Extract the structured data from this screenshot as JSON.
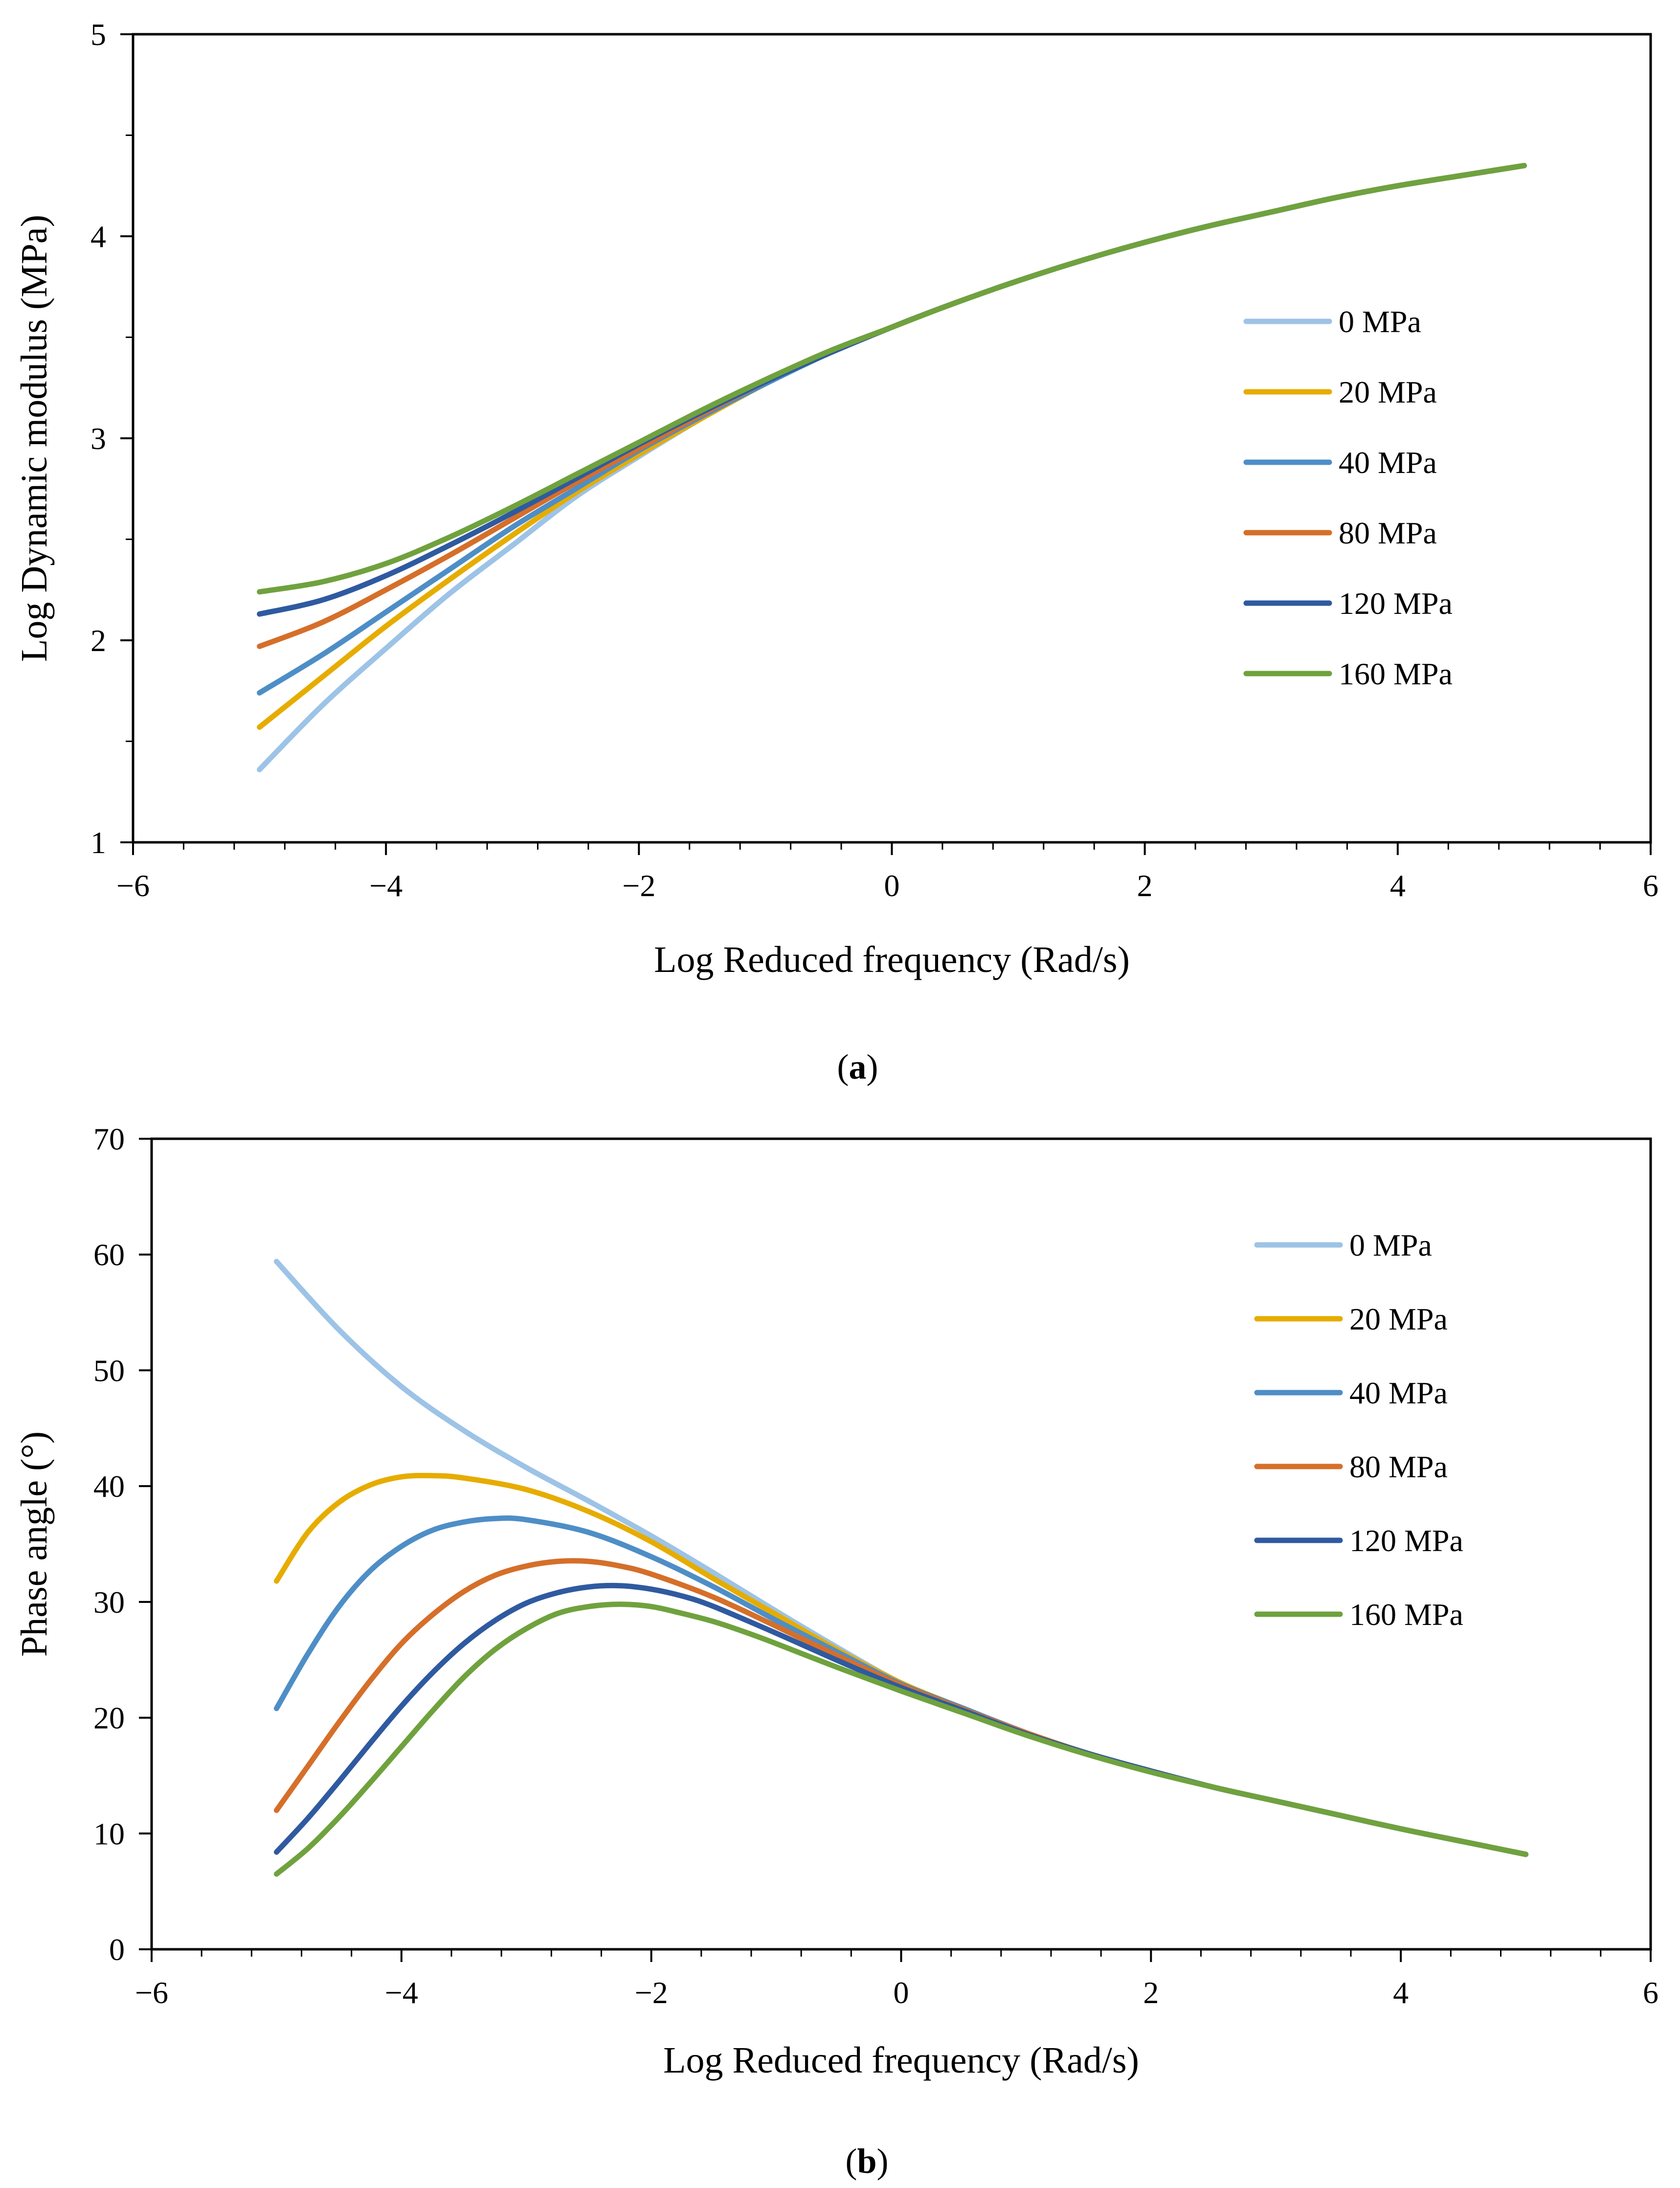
{
  "chart_data": [
    {
      "id": "a",
      "type": "line",
      "caption": {
        "open": "(",
        "letter": "a",
        "close": ")"
      },
      "xlabel": "Log Reduced frequency (Rad/s)",
      "ylabel": "Log Dynamic modulus (MPa)",
      "xlim": [
        -6,
        6
      ],
      "ylim": [
        1,
        5
      ],
      "xticks": [
        -6,
        -4,
        -2,
        0,
        2,
        4,
        6
      ],
      "xtick_labels": [
        "−6",
        "−4",
        "−2",
        "0",
        "2",
        "4",
        "6"
      ],
      "yticks": [
        1,
        2,
        3,
        4,
        5
      ],
      "ytick_labels": [
        "1",
        "2",
        "3",
        "4",
        "5"
      ],
      "grid": false,
      "legend_position": "right",
      "series": [
        {
          "name": "0 MPa",
          "color": "#9DC3E6",
          "x": [
            -5,
            -4.5,
            -4,
            -3.5,
            -3,
            -2.5,
            -2,
            -1.5,
            -1,
            -0.5,
            0,
            0.5,
            1,
            1.5,
            2,
            2.5,
            3,
            3.5,
            4,
            4.5,
            5
          ],
          "y": [
            1.36,
            1.68,
            1.96,
            2.23,
            2.47,
            2.71,
            2.91,
            3.1,
            3.27,
            3.42,
            3.55,
            3.67,
            3.78,
            3.88,
            3.97,
            4.05,
            4.12,
            4.19,
            4.25,
            4.3,
            4.35
          ]
        },
        {
          "name": "20 MPa",
          "color": "#E6AC00",
          "x": [
            -5,
            -4.5,
            -4,
            -3.5,
            -3,
            -2.5,
            -2,
            -1.5,
            -1,
            -0.5,
            0,
            0.5,
            1,
            1.5,
            2,
            2.5,
            3,
            3.5,
            4,
            4.5,
            5
          ],
          "y": [
            1.57,
            1.82,
            2.07,
            2.3,
            2.52,
            2.73,
            2.92,
            3.1,
            3.27,
            3.42,
            3.55,
            3.67,
            3.78,
            3.88,
            3.97,
            4.05,
            4.12,
            4.19,
            4.25,
            4.3,
            4.35
          ]
        },
        {
          "name": "40 MPa",
          "color": "#4E8EC6",
          "x": [
            -5,
            -4.5,
            -4,
            -3.5,
            -3,
            -2.5,
            -2,
            -1.5,
            -1,
            -0.5,
            0,
            0.5,
            1,
            1.5,
            2,
            2.5,
            3,
            3.5,
            4,
            4.5,
            5
          ],
          "y": [
            1.74,
            1.93,
            2.14,
            2.35,
            2.56,
            2.75,
            2.94,
            3.11,
            3.27,
            3.42,
            3.55,
            3.67,
            3.78,
            3.88,
            3.97,
            4.05,
            4.12,
            4.19,
            4.25,
            4.3,
            4.35
          ]
        },
        {
          "name": "80 MPa",
          "color": "#D56F2A",
          "x": [
            -5,
            -4.5,
            -4,
            -3.5,
            -3,
            -2.5,
            -2,
            -1.5,
            -1,
            -0.5,
            0,
            0.5,
            1,
            1.5,
            2,
            2.5,
            3,
            3.5,
            4,
            4.5,
            5
          ],
          "y": [
            1.97,
            2.09,
            2.25,
            2.42,
            2.6,
            2.78,
            2.95,
            3.12,
            3.28,
            3.42,
            3.55,
            3.67,
            3.78,
            3.88,
            3.97,
            4.05,
            4.12,
            4.19,
            4.25,
            4.3,
            4.35
          ]
        },
        {
          "name": "120 MPa",
          "color": "#2F5AA0",
          "x": [
            -5,
            -4.5,
            -4,
            -3.5,
            -3,
            -2.5,
            -2,
            -1.5,
            -1,
            -0.5,
            0,
            0.5,
            1,
            1.5,
            2,
            2.5,
            3,
            3.5,
            4,
            4.5,
            5
          ],
          "y": [
            2.13,
            2.2,
            2.32,
            2.47,
            2.63,
            2.8,
            2.97,
            3.13,
            3.28,
            3.42,
            3.55,
            3.67,
            3.78,
            3.88,
            3.97,
            4.05,
            4.12,
            4.19,
            4.25,
            4.3,
            4.35
          ]
        },
        {
          "name": "160 MPa",
          "color": "#6FA23E",
          "x": [
            -5,
            -4.5,
            -4,
            -3.5,
            -3,
            -2.5,
            -2,
            -1.5,
            -1,
            -0.5,
            0,
            0.5,
            1,
            1.5,
            2,
            2.5,
            3,
            3.5,
            4,
            4.5,
            5
          ],
          "y": [
            2.24,
            2.29,
            2.38,
            2.51,
            2.66,
            2.82,
            2.98,
            3.14,
            3.29,
            3.43,
            3.55,
            3.67,
            3.78,
            3.88,
            3.97,
            4.05,
            4.12,
            4.19,
            4.25,
            4.3,
            4.35
          ]
        }
      ]
    },
    {
      "id": "b",
      "type": "line",
      "caption": {
        "open": "(",
        "letter": "b",
        "close": ")"
      },
      "xlabel": "Log Reduced frequency (Rad/s)",
      "ylabel": "Phase angle (°)",
      "xlim": [
        -6,
        6
      ],
      "ylim": [
        0,
        70
      ],
      "xticks": [
        -6,
        -4,
        -2,
        0,
        2,
        4,
        6
      ],
      "xtick_labels": [
        "−6",
        "−4",
        "−2",
        "0",
        "2",
        "4",
        "6"
      ],
      "yticks": [
        0,
        10,
        20,
        30,
        40,
        50,
        60,
        70
      ],
      "ytick_labels": [
        "0",
        "10",
        "20",
        "30",
        "40",
        "50",
        "60",
        "70"
      ],
      "grid": false,
      "legend_position": "top-right",
      "series": [
        {
          "name": "0 MPa",
          "color": "#9DC3E6",
          "x": [
            -5,
            -4.5,
            -4,
            -3.5,
            -3,
            -2.5,
            -2,
            -1.5,
            -1,
            -0.5,
            0,
            0.5,
            1,
            1.5,
            2,
            2.5,
            3,
            3.5,
            4,
            4.5,
            5
          ],
          "y": [
            59.4,
            53.5,
            48.6,
            44.8,
            41.6,
            38.7,
            35.7,
            32.5,
            29.2,
            26.0,
            23.0,
            20.8,
            18.7,
            16.9,
            15.4,
            14.0,
            12.8,
            11.6,
            10.4,
            9.3,
            8.2
          ]
        },
        {
          "name": "20 MPa",
          "color": "#E6AC00",
          "x": [
            -5,
            -4.75,
            -4.5,
            -4.25,
            -4,
            -3.75,
            -3.5,
            -3,
            -2.5,
            -2,
            -1.5,
            -1,
            -0.5,
            0,
            0.5,
            1,
            1.5,
            2,
            2.5,
            3,
            3.5,
            4,
            4.5,
            5
          ],
          "y": [
            31.8,
            36.0,
            38.6,
            40.1,
            40.8,
            40.9,
            40.7,
            39.7,
            37.8,
            35.2,
            32.0,
            28.9,
            25.8,
            23.0,
            20.8,
            18.7,
            16.9,
            15.4,
            14.0,
            12.8,
            11.6,
            10.4,
            9.3,
            8.2
          ]
        },
        {
          "name": "40 MPa",
          "color": "#4E8EC6",
          "x": [
            -5,
            -4.75,
            -4.5,
            -4.25,
            -4,
            -3.75,
            -3.5,
            -3.25,
            -3,
            -2.5,
            -2,
            -1.5,
            -1,
            -0.5,
            0,
            0.5,
            1,
            1.5,
            2,
            2.5,
            3,
            3.5,
            4,
            4.5,
            5
          ],
          "y": [
            20.8,
            25.5,
            29.6,
            32.7,
            34.8,
            36.2,
            36.9,
            37.2,
            37.1,
            36.0,
            33.9,
            31.3,
            28.4,
            25.6,
            22.9,
            20.8,
            18.7,
            16.9,
            15.4,
            14.0,
            12.8,
            11.6,
            10.4,
            9.3,
            8.2
          ]
        },
        {
          "name": "80 MPa",
          "color": "#D56F2A",
          "x": [
            -5,
            -4.75,
            -4.5,
            -4.25,
            -4,
            -3.75,
            -3.5,
            -3.25,
            -3,
            -2.75,
            -2.5,
            -2.25,
            -2,
            -1.5,
            -1,
            -0.5,
            0,
            0.5,
            1,
            1.5,
            2,
            2.5,
            3,
            3.5,
            4,
            4.5,
            5
          ],
          "y": [
            12.0,
            15.8,
            19.6,
            23.2,
            26.4,
            28.9,
            30.9,
            32.3,
            33.1,
            33.5,
            33.5,
            33.1,
            32.4,
            30.4,
            27.9,
            25.3,
            22.8,
            20.7,
            18.7,
            16.9,
            15.4,
            14.0,
            12.8,
            11.6,
            10.4,
            9.3,
            8.2
          ]
        },
        {
          "name": "120 MPa",
          "color": "#2F5AA0",
          "x": [
            -5,
            -4.75,
            -4.5,
            -4.25,
            -4,
            -3.75,
            -3.5,
            -3.25,
            -3,
            -2.75,
            -2.5,
            -2.25,
            -2,
            -1.75,
            -1.5,
            -1,
            -0.5,
            0,
            0.5,
            1,
            1.5,
            2,
            2.5,
            3,
            3.5,
            4,
            4.5,
            5
          ],
          "y": [
            8.4,
            11.3,
            14.5,
            17.8,
            21.0,
            23.9,
            26.4,
            28.4,
            29.9,
            30.8,
            31.3,
            31.4,
            31.1,
            30.5,
            29.6,
            27.3,
            24.9,
            22.6,
            20.6,
            18.6,
            16.9,
            15.4,
            14.0,
            12.8,
            11.6,
            10.4,
            9.3,
            8.2
          ]
        },
        {
          "name": "160 MPa",
          "color": "#6FA23E",
          "x": [
            -5,
            -4.75,
            -4.5,
            -4.25,
            -4,
            -3.75,
            -3.5,
            -3.25,
            -3,
            -2.75,
            -2.5,
            -2.25,
            -2,
            -1.75,
            -1.5,
            -1.25,
            -1,
            -0.5,
            0,
            0.5,
            1,
            1.5,
            2,
            2.5,
            3,
            3.5,
            4,
            4.5,
            5
          ],
          "y": [
            6.5,
            8.7,
            11.4,
            14.4,
            17.5,
            20.6,
            23.5,
            25.9,
            27.7,
            29.0,
            29.6,
            29.8,
            29.6,
            29.0,
            28.3,
            27.4,
            26.4,
            24.3,
            22.3,
            20.4,
            18.5,
            16.8,
            15.3,
            14.0,
            12.8,
            11.6,
            10.4,
            9.3,
            8.2
          ]
        }
      ]
    }
  ]
}
